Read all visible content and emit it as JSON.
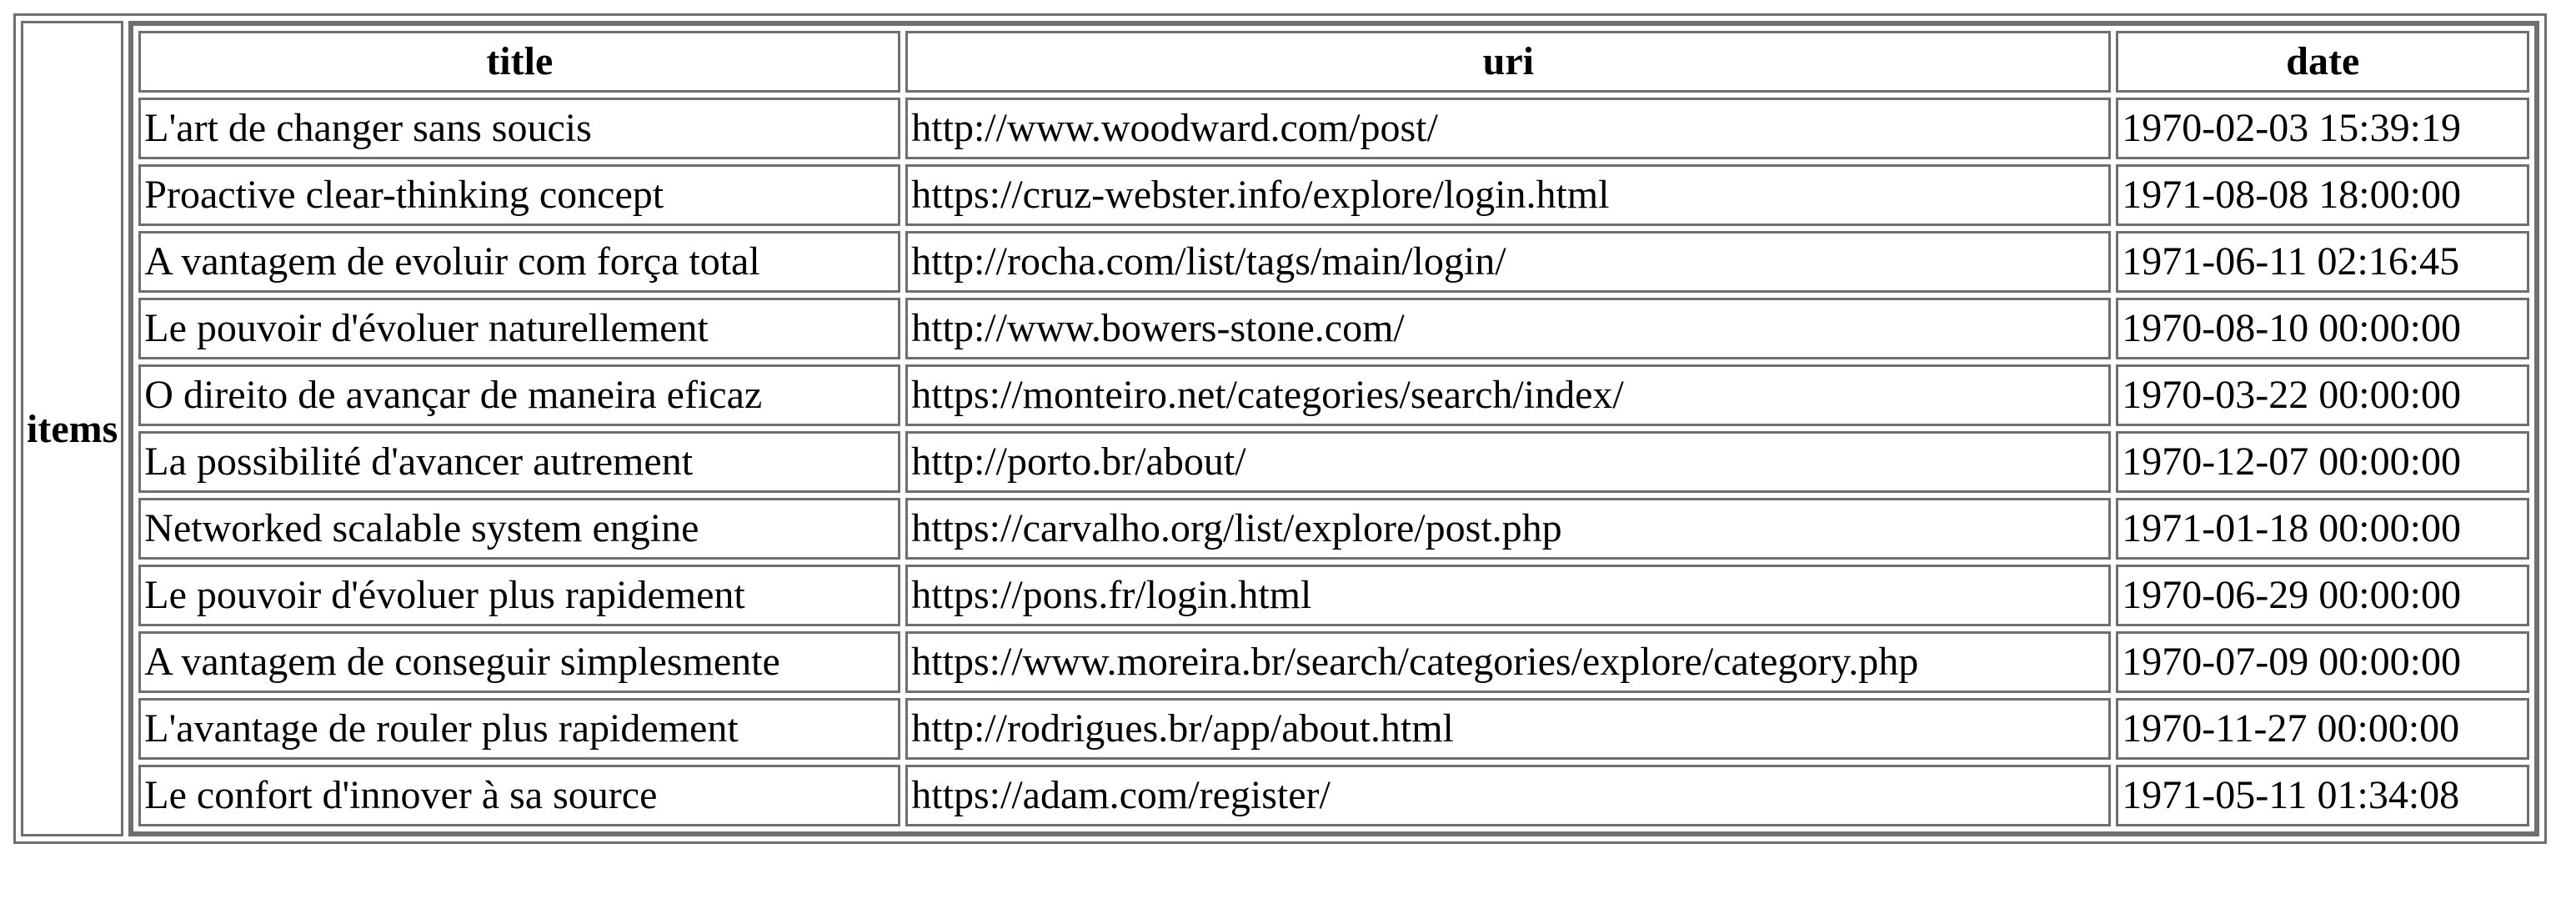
{
  "group_label": "items",
  "columns": [
    "title",
    "uri",
    "date"
  ],
  "rows": [
    {
      "title": "L'art de changer sans soucis",
      "uri": "http://www.woodward.com/post/",
      "date": "1970-02-03 15:39:19"
    },
    {
      "title": "Proactive clear-thinking concept",
      "uri": "https://cruz-webster.info/explore/login.html",
      "date": "1971-08-08 18:00:00"
    },
    {
      "title": "A vantagem de evoluir com força total",
      "uri": "http://rocha.com/list/tags/main/login/",
      "date": "1971-06-11 02:16:45"
    },
    {
      "title": "Le pouvoir d'évoluer naturellement",
      "uri": "http://www.bowers-stone.com/",
      "date": "1970-08-10 00:00:00"
    },
    {
      "title": "O direito de avançar de maneira eficaz",
      "uri": "https://monteiro.net/categories/search/index/",
      "date": "1970-03-22 00:00:00"
    },
    {
      "title": "La possibilité d'avancer autrement",
      "uri": "http://porto.br/about/",
      "date": "1970-12-07 00:00:00"
    },
    {
      "title": "Networked scalable system engine",
      "uri": "https://carvalho.org/list/explore/post.php",
      "date": "1971-01-18 00:00:00"
    },
    {
      "title": "Le pouvoir d'évoluer plus rapidement",
      "uri": "https://pons.fr/login.html",
      "date": "1970-06-29 00:00:00"
    },
    {
      "title": "A vantagem de conseguir simplesmente",
      "uri": "https://www.moreira.br/search/categories/explore/category.php",
      "date": "1970-07-09 00:00:00"
    },
    {
      "title": "L'avantage de rouler plus rapidement",
      "uri": "http://rodrigues.br/app/about.html",
      "date": "1970-11-27 00:00:00"
    },
    {
      "title": "Le confort d'innover à sa source",
      "uri": "https://adam.com/register/",
      "date": "1971-05-11 01:34:08"
    }
  ]
}
